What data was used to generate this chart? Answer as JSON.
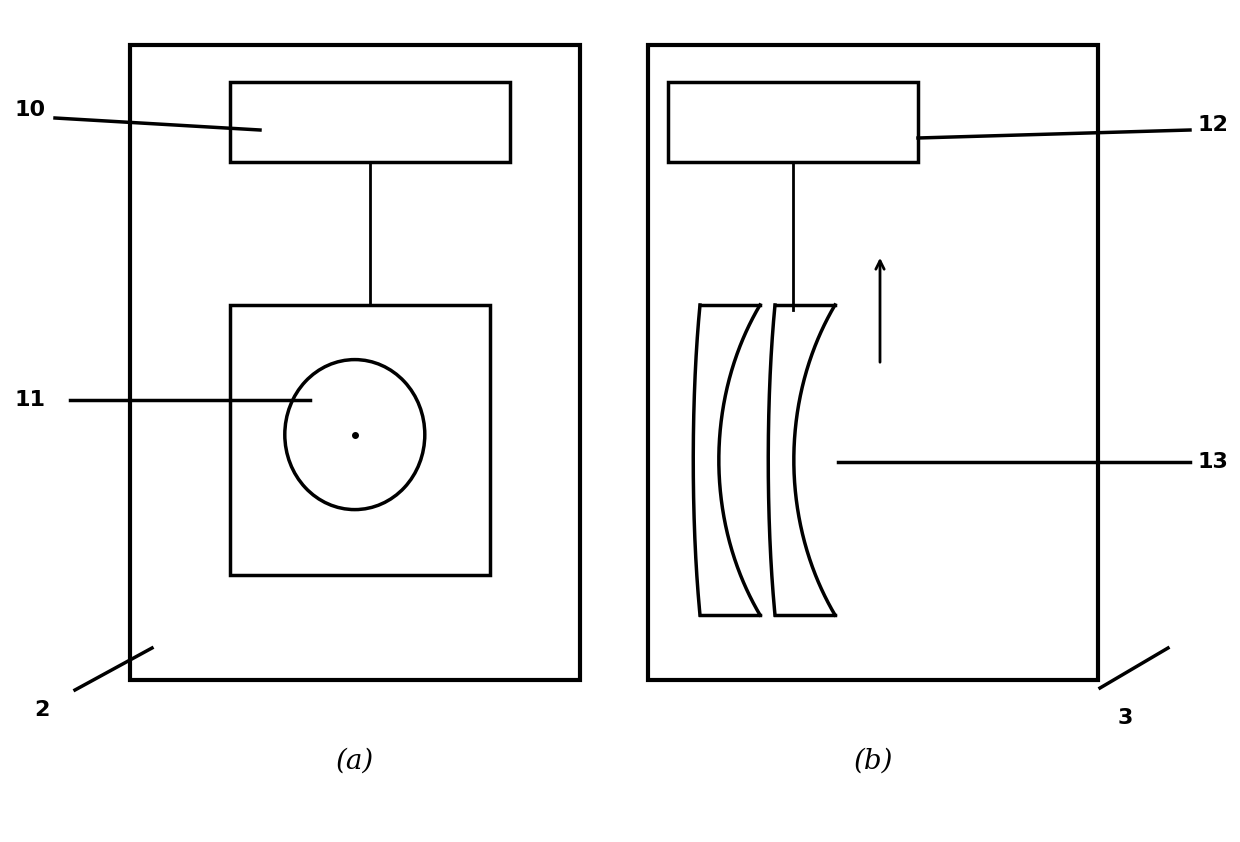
{
  "bg_color": "#ffffff",
  "line_color": "#000000",
  "fig_width": 12.4,
  "fig_height": 8.42,
  "label_a": "(a)",
  "label_b": "(b)"
}
